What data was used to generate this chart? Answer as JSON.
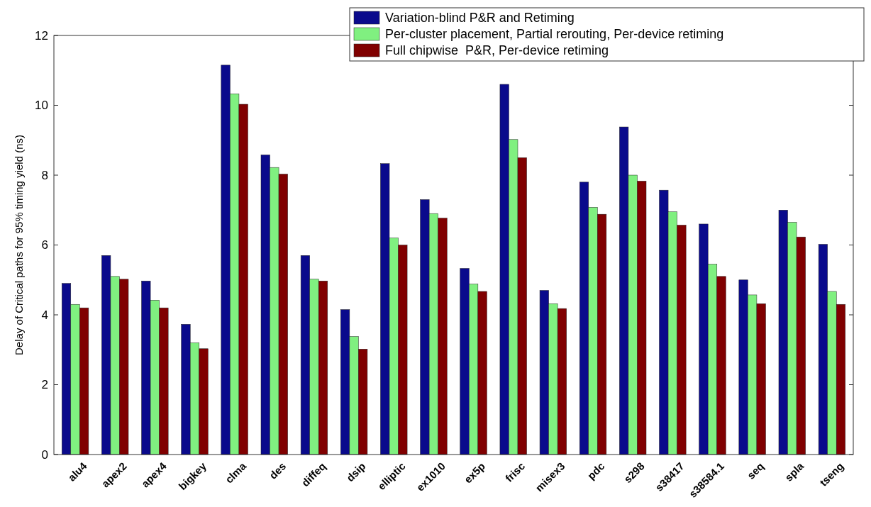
{
  "chart_data": {
    "type": "bar",
    "ylabel": "Delay of Critical paths for 95% timing yield (ns)",
    "categories": [
      "alu4",
      "apex2",
      "apex4",
      "bigkey",
      "clma",
      "des",
      "diffeq",
      "dsip",
      "elliptic",
      "ex1010",
      "ex5p",
      "frisc",
      "misex3",
      "pdc",
      "s298",
      "s38417",
      "s38584.1",
      "seq",
      "spla",
      "tseng"
    ],
    "series": [
      {
        "name": "Variation-blind P&R and Retiming",
        "color": "#0a0a8c",
        "values": [
          4.9,
          5.7,
          4.97,
          3.73,
          11.15,
          8.58,
          5.7,
          4.15,
          8.33,
          7.3,
          5.33,
          10.6,
          4.7,
          7.8,
          9.38,
          7.57,
          6.6,
          5.0,
          7.0,
          6.02
        ]
      },
      {
        "name": "Per-cluster placement, Partial rerouting, Per-device retiming",
        "color": "#80f080",
        "values": [
          4.3,
          5.1,
          4.42,
          3.2,
          10.33,
          8.22,
          5.02,
          3.38,
          6.2,
          6.9,
          4.88,
          9.02,
          4.32,
          7.08,
          8.0,
          6.95,
          5.45,
          4.57,
          6.65,
          4.67
        ]
      },
      {
        "name": "Full chipwise  P&R, Per-device retiming",
        "color": "#800000",
        "values": [
          4.2,
          5.02,
          4.2,
          3.03,
          10.03,
          8.03,
          4.97,
          3.02,
          6.0,
          6.77,
          4.67,
          8.5,
          4.18,
          6.88,
          7.83,
          6.57,
          5.1,
          4.32,
          6.23,
          4.3
        ]
      }
    ],
    "ylim": [
      0,
      12
    ],
    "yticks": [
      0,
      2,
      4,
      6,
      8,
      10,
      12
    ],
    "grid": false,
    "legend": "top right"
  }
}
